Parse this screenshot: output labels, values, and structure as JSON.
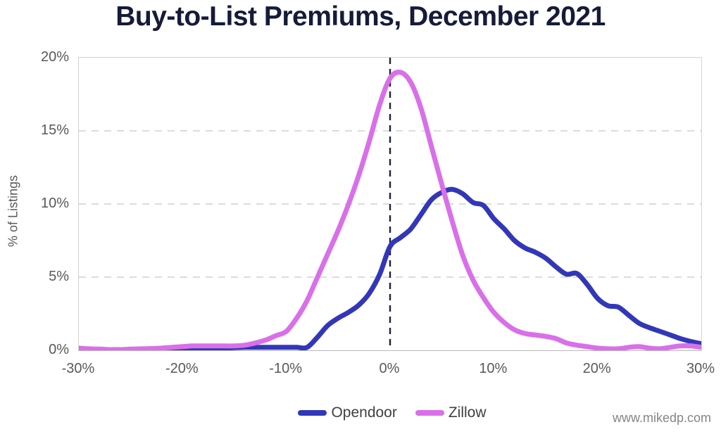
{
  "watermark": "www.mikedp.com",
  "colors": {
    "opendoor_line": "#3237b8",
    "zillow_line": "#d96fe9",
    "title_text": "#151b38",
    "axis_text": "#595959",
    "gridline": "#dcdcdc",
    "zero_line": "#1c2238",
    "legend_text": "#3f3f3f",
    "watermark_text": "#858585"
  },
  "chart_data": {
    "type": "line",
    "title": "Buy-to-List Premiums, December 2021",
    "xlabel": "",
    "ylabel": "% of Listings",
    "xlim": [
      -30,
      30
    ],
    "ylim": [
      0,
      20
    ],
    "x_tick_labels": [
      "-30%",
      "-20%",
      "-10%",
      "0%",
      "10%",
      "20%",
      "30%"
    ],
    "x_tick_values": [
      -30,
      -20,
      -10,
      0,
      10,
      20,
      30
    ],
    "y_tick_labels": [
      "0%",
      "5%",
      "10%",
      "15%",
      "20%"
    ],
    "y_tick_values": [
      0,
      5,
      10,
      15,
      20
    ],
    "grid": "horizontal dashed at 5/10/15, solid top border at 20",
    "reference_line": {
      "x": 0,
      "style": "vertical dashed"
    },
    "legend_position": "bottom-center",
    "x_unit": "buy-to-list premium (%)",
    "y_unit": "% of listings",
    "x": [
      -30,
      -29,
      -28,
      -27,
      -26,
      -25,
      -24,
      -23,
      -22,
      -21,
      -20,
      -19,
      -18,
      -17,
      -16,
      -15,
      -14,
      -13,
      -12,
      -11,
      -10,
      -9,
      -8,
      -7,
      -6,
      -5,
      -4,
      -3,
      -2,
      -1,
      0,
      1,
      2,
      3,
      4,
      5,
      6,
      7,
      8,
      9,
      10,
      11,
      12,
      13,
      14,
      15,
      16,
      17,
      18,
      19,
      20,
      21,
      22,
      23,
      24,
      25,
      26,
      27,
      28,
      29,
      30
    ],
    "series": [
      {
        "name": "Opendoor",
        "color": "#3237b8",
        "peak": {
          "x": 6,
          "y": 11.0
        },
        "values": [
          0.05,
          0.05,
          0.05,
          0.05,
          0.05,
          0.05,
          0.05,
          0.05,
          0.08,
          0.08,
          0.1,
          0.1,
          0.12,
          0.15,
          0.15,
          0.18,
          0.2,
          0.2,
          0.2,
          0.2,
          0.2,
          0.2,
          0.2,
          0.9,
          1.7,
          2.2,
          2.6,
          3.1,
          3.9,
          5.2,
          7.1,
          7.7,
          8.3,
          9.3,
          10.3,
          10.8,
          11.0,
          10.7,
          10.1,
          9.9,
          9.0,
          8.3,
          7.5,
          7.0,
          6.7,
          6.3,
          5.7,
          5.2,
          5.25,
          4.5,
          3.55,
          3.05,
          2.95,
          2.4,
          1.85,
          1.55,
          1.3,
          1.05,
          0.8,
          0.6,
          0.45
        ]
      },
      {
        "name": "Zillow",
        "color": "#d96fe9",
        "peak": {
          "x": 1,
          "y": 19.0
        },
        "values": [
          0.15,
          0.1,
          0.08,
          0.05,
          0.05,
          0.08,
          0.1,
          0.12,
          0.15,
          0.2,
          0.25,
          0.3,
          0.3,
          0.3,
          0.3,
          0.3,
          0.35,
          0.5,
          0.7,
          1.0,
          1.3,
          2.2,
          3.4,
          5.0,
          6.6,
          8.2,
          10.0,
          12.0,
          14.3,
          16.8,
          18.6,
          19.0,
          18.3,
          16.5,
          13.9,
          11.3,
          8.8,
          6.5,
          4.8,
          3.6,
          2.6,
          1.9,
          1.4,
          1.15,
          1.05,
          0.95,
          0.8,
          0.5,
          0.35,
          0.25,
          0.15,
          0.1,
          0.1,
          0.2,
          0.25,
          0.15,
          0.1,
          0.2,
          0.3,
          0.3,
          0.2
        ]
      }
    ]
  }
}
